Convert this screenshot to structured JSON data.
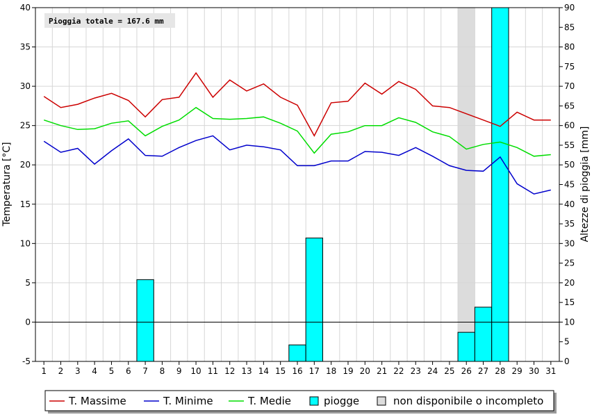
{
  "chart_data": {
    "type": "line",
    "x": [
      1,
      2,
      3,
      4,
      5,
      6,
      7,
      8,
      9,
      10,
      11,
      12,
      13,
      14,
      15,
      16,
      17,
      18,
      19,
      20,
      21,
      22,
      23,
      24,
      25,
      26,
      27,
      28,
      29,
      30,
      31
    ],
    "y_left": {
      "label": "Temperatura [°C]",
      "range": [
        -5,
        40
      ],
      "ticks": [
        -5,
        0,
        5,
        10,
        15,
        20,
        25,
        30,
        35,
        40
      ]
    },
    "y_right": {
      "label": "Altezze di pioggia [mm]",
      "range": [
        0,
        90
      ],
      "ticks": [
        0,
        5,
        10,
        15,
        20,
        25,
        30,
        35,
        40,
        45,
        50,
        55,
        60,
        65,
        70,
        75,
        80,
        85,
        90
      ]
    },
    "annotation": "Pioggia totale = 167.6 mm",
    "series": [
      {
        "name": "T. Massime",
        "color": "#cc0000",
        "axis": "left",
        "values": [
          28.7,
          27.3,
          27.7,
          28.5,
          29.1,
          28.2,
          26.1,
          28.3,
          28.6,
          31.7,
          28.6,
          30.8,
          29.4,
          30.3,
          28.6,
          27.6,
          23.7,
          27.9,
          28.1,
          30.4,
          29.0,
          30.6,
          29.6,
          27.5,
          27.3,
          26.5,
          25.7,
          24.9,
          26.7,
          25.7,
          25.7
        ]
      },
      {
        "name": "T. Minime",
        "color": "#0000cc",
        "axis": "left",
        "values": [
          23.0,
          21.6,
          22.1,
          20.1,
          21.8,
          23.3,
          21.2,
          21.1,
          22.2,
          23.1,
          23.7,
          21.9,
          22.5,
          22.3,
          21.9,
          19.9,
          19.9,
          20.5,
          20.5,
          21.7,
          21.6,
          21.2,
          22.2,
          21.1,
          19.9,
          19.3,
          19.2,
          21.0,
          17.6,
          16.3,
          16.8
        ]
      },
      {
        "name": "T. Medie",
        "color": "#00dd00",
        "axis": "left",
        "values": [
          25.7,
          25.0,
          24.5,
          24.6,
          25.3,
          25.6,
          23.7,
          24.9,
          25.7,
          27.3,
          25.9,
          25.8,
          25.9,
          26.1,
          25.3,
          24.3,
          21.5,
          23.9,
          24.2,
          25.0,
          25.0,
          26.0,
          25.4,
          24.2,
          23.6,
          22.0,
          22.6,
          22.9,
          22.2,
          21.1,
          21.3
        ]
      },
      {
        "name": "piogge",
        "color": "#00ffff",
        "axis": "right",
        "type": "bar",
        "values": [
          0,
          0,
          0,
          0,
          0,
          0,
          20.8,
          0,
          0,
          0,
          0,
          0,
          0,
          0,
          0,
          4.2,
          31.4,
          0,
          0,
          0,
          0,
          0,
          0,
          0,
          0,
          7.4,
          13.8,
          90.0,
          0,
          0,
          0
        ]
      }
    ],
    "missing_days": [
      26
    ],
    "missing_label": "non disponibile o incompleto",
    "grid": true,
    "legend_position": "bottom"
  }
}
